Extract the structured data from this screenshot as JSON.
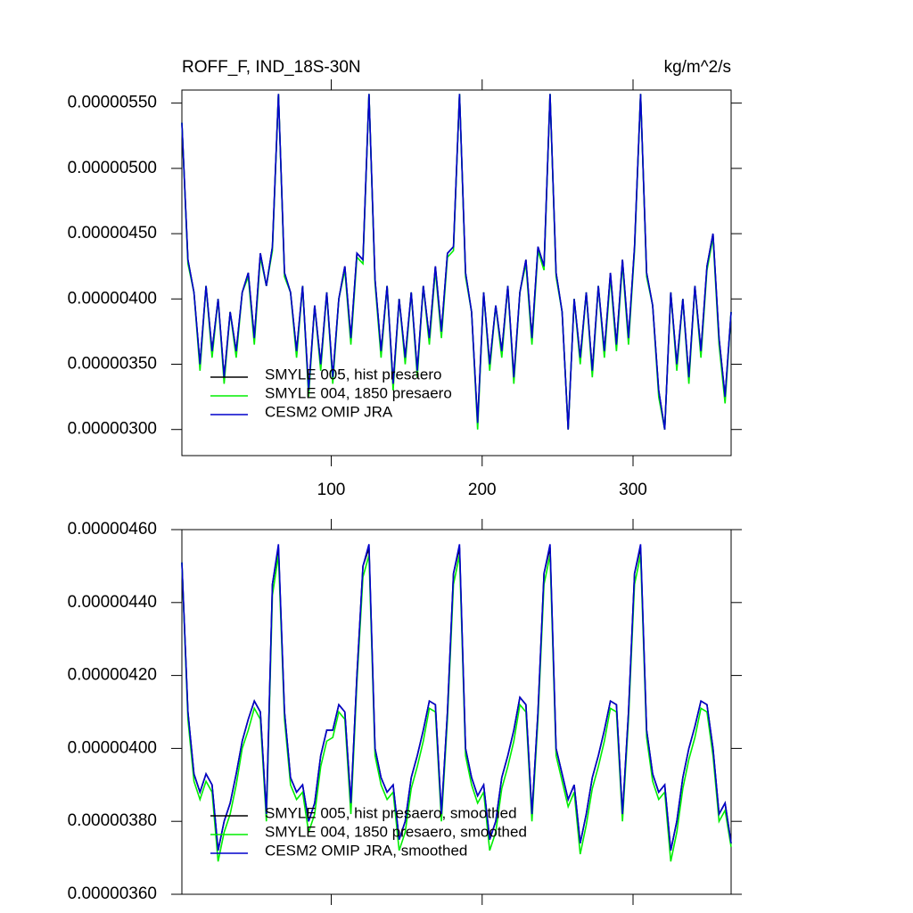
{
  "chart_data": [
    {
      "type": "line",
      "title": "ROFF_F, IND_18S-30N",
      "units_label": "kg/m^2/s",
      "legend": "lower left",
      "grid": false,
      "xlim": [
        1,
        365
      ],
      "xticks": [
        100,
        200,
        300
      ],
      "ylim": [
        2.8e-06,
        5.6e-06
      ],
      "yticks": [
        {
          "value": 3e-06,
          "label": "0.00000300"
        },
        {
          "value": 3.5e-06,
          "label": "0.00000350"
        },
        {
          "value": 4e-06,
          "label": "0.00000400"
        },
        {
          "value": 4.5e-06,
          "label": "0.00000450"
        },
        {
          "value": 5e-06,
          "label": "0.00000500"
        },
        {
          "value": 5.5e-06,
          "label": "0.00000550"
        }
      ],
      "x": [
        1,
        5,
        9,
        13,
        17,
        21,
        25,
        29,
        33,
        37,
        41,
        45,
        49,
        53,
        57,
        61,
        65,
        69,
        73,
        77,
        81,
        85,
        89,
        93,
        97,
        101,
        105,
        109,
        113,
        117,
        121,
        125,
        129,
        133,
        137,
        141,
        145,
        149,
        153,
        157,
        161,
        165,
        169,
        173,
        177,
        181,
        185,
        189,
        193,
        197,
        201,
        205,
        209,
        213,
        217,
        221,
        225,
        229,
        233,
        237,
        241,
        245,
        249,
        253,
        257,
        261,
        265,
        269,
        273,
        277,
        281,
        285,
        289,
        293,
        297,
        301,
        305,
        309,
        313,
        317,
        321,
        325,
        329,
        333,
        337,
        341,
        345,
        349,
        353,
        357,
        361,
        365
      ],
      "series": [
        {
          "name": "SMYLE 005, hist presaero",
          "color": "#000000",
          "values": [
            5.35e-06,
            4.3e-06,
            4.05e-06,
            3.5e-06,
            4.1e-06,
            3.6e-06,
            4e-06,
            3.4e-06,
            3.9e-06,
            3.6e-06,
            4.05e-06,
            4.2e-06,
            3.7e-06,
            4.35e-06,
            4.1e-06,
            4.4e-06,
            5.57e-06,
            4.2e-06,
            4.05e-06,
            3.6e-06,
            4.1e-06,
            3.3e-06,
            3.95e-06,
            3.5e-06,
            4.05e-06,
            3.4e-06,
            4e-06,
            4.25e-06,
            3.7e-06,
            4.35e-06,
            4.3e-06,
            5.57e-06,
            4.15e-06,
            3.6e-06,
            4.1e-06,
            3.35e-06,
            4e-06,
            3.55e-06,
            4.05e-06,
            3.45e-06,
            4.1e-06,
            3.7e-06,
            4.25e-06,
            3.75e-06,
            4.35e-06,
            4.4e-06,
            5.57e-06,
            4.2e-06,
            3.9e-06,
            3.05e-06,
            4.05e-06,
            3.5e-06,
            3.95e-06,
            3.6e-06,
            4.1e-06,
            3.4e-06,
            4.05e-06,
            4.3e-06,
            3.7e-06,
            4.4e-06,
            4.25e-06,
            5.57e-06,
            4.2e-06,
            3.9e-06,
            3e-06,
            4e-06,
            3.55e-06,
            4.05e-06,
            3.45e-06,
            4.1e-06,
            3.6e-06,
            4.2e-06,
            3.65e-06,
            4.3e-06,
            3.7e-06,
            4.4e-06,
            5.57e-06,
            4.2e-06,
            3.95e-06,
            3.3e-06,
            3e-06,
            4.05e-06,
            3.5e-06,
            4e-06,
            3.4e-06,
            4.1e-06,
            3.6e-06,
            4.25e-06,
            4.5e-06,
            3.7e-06,
            3.25e-06,
            3.9e-06
          ]
        },
        {
          "name": "SMYLE 004, 1850 presaero",
          "color": "#00ee00",
          "values": [
            5.35e-06,
            4.27e-06,
            4.05e-06,
            3.45e-06,
            4.1e-06,
            3.55e-06,
            4e-06,
            3.35e-06,
            3.9e-06,
            3.55e-06,
            4.05e-06,
            4.17e-06,
            3.65e-06,
            4.32e-06,
            4.1e-06,
            4.37e-06,
            5.57e-06,
            4.17e-06,
            4.05e-06,
            3.55e-06,
            4.1e-06,
            3.25e-06,
            3.95e-06,
            3.45e-06,
            4.05e-06,
            3.35e-06,
            4e-06,
            4.22e-06,
            3.65e-06,
            4.32e-06,
            4.27e-06,
            5.57e-06,
            4.12e-06,
            3.55e-06,
            4.1e-06,
            3.3e-06,
            4e-06,
            3.5e-06,
            4.05e-06,
            3.4e-06,
            4.1e-06,
            3.65e-06,
            4.22e-06,
            3.7e-06,
            4.32e-06,
            4.37e-06,
            5.57e-06,
            4.17e-06,
            3.9e-06,
            3e-06,
            4.05e-06,
            3.45e-06,
            3.95e-06,
            3.55e-06,
            4.1e-06,
            3.35e-06,
            4.05e-06,
            4.27e-06,
            3.65e-06,
            4.37e-06,
            4.22e-06,
            5.57e-06,
            4.17e-06,
            3.9e-06,
            3e-06,
            4e-06,
            3.5e-06,
            4.05e-06,
            3.4e-06,
            4.1e-06,
            3.55e-06,
            4.17e-06,
            3.6e-06,
            4.27e-06,
            3.65e-06,
            4.37e-06,
            5.57e-06,
            4.17e-06,
            3.95e-06,
            3.25e-06,
            3e-06,
            4.05e-06,
            3.45e-06,
            4e-06,
            3.35e-06,
            4.1e-06,
            3.55e-06,
            4.22e-06,
            4.47e-06,
            3.65e-06,
            3.2e-06,
            3.9e-06
          ]
        },
        {
          "name": "CESM2 OMIP JRA",
          "color": "#0000cc",
          "values": [
            5.35e-06,
            4.3e-06,
            4.05e-06,
            3.5e-06,
            4.1e-06,
            3.6e-06,
            4e-06,
            3.4e-06,
            3.9e-06,
            3.6e-06,
            4.05e-06,
            4.2e-06,
            3.7e-06,
            4.35e-06,
            4.1e-06,
            4.4e-06,
            5.57e-06,
            4.2e-06,
            4.05e-06,
            3.6e-06,
            4.1e-06,
            3.3e-06,
            3.95e-06,
            3.5e-06,
            4.05e-06,
            3.4e-06,
            4e-06,
            4.25e-06,
            3.7e-06,
            4.35e-06,
            4.3e-06,
            5.57e-06,
            4.15e-06,
            3.6e-06,
            4.1e-06,
            3.35e-06,
            4e-06,
            3.55e-06,
            4.05e-06,
            3.45e-06,
            4.1e-06,
            3.7e-06,
            4.25e-06,
            3.75e-06,
            4.35e-06,
            4.4e-06,
            5.57e-06,
            4.2e-06,
            3.9e-06,
            3.05e-06,
            4.05e-06,
            3.5e-06,
            3.95e-06,
            3.6e-06,
            4.1e-06,
            3.4e-06,
            4.05e-06,
            4.3e-06,
            3.7e-06,
            4.4e-06,
            4.25e-06,
            5.57e-06,
            4.2e-06,
            3.9e-06,
            3e-06,
            4e-06,
            3.55e-06,
            4.05e-06,
            3.45e-06,
            4.1e-06,
            3.6e-06,
            4.2e-06,
            3.65e-06,
            4.3e-06,
            3.7e-06,
            4.4e-06,
            5.57e-06,
            4.2e-06,
            3.95e-06,
            3.3e-06,
            3e-06,
            4.05e-06,
            3.5e-06,
            4e-06,
            3.4e-06,
            4.1e-06,
            3.6e-06,
            4.25e-06,
            4.5e-06,
            3.7e-06,
            3.25e-06,
            3.9e-06
          ]
        }
      ]
    },
    {
      "type": "line",
      "legend": "lower left",
      "grid": false,
      "xlim": [
        1,
        365
      ],
      "xticks": [
        100,
        200,
        300
      ],
      "ylim": [
        3.6e-06,
        4.6e-06
      ],
      "yticks": [
        {
          "value": 3.6e-06,
          "label": "0.00000360"
        },
        {
          "value": 3.8e-06,
          "label": "0.00000380"
        },
        {
          "value": 4e-06,
          "label": "0.00000400"
        },
        {
          "value": 4.2e-06,
          "label": "0.00000420"
        },
        {
          "value": 4.4e-06,
          "label": "0.00000440"
        },
        {
          "value": 4.6e-06,
          "label": "0.00000460"
        }
      ],
      "x": [
        1,
        5,
        9,
        13,
        17,
        21,
        25,
        29,
        33,
        37,
        41,
        45,
        49,
        53,
        57,
        61,
        65,
        69,
        73,
        77,
        81,
        85,
        89,
        93,
        97,
        101,
        105,
        109,
        113,
        117,
        121,
        125,
        129,
        133,
        137,
        141,
        145,
        149,
        153,
        157,
        161,
        165,
        169,
        173,
        177,
        181,
        185,
        189,
        193,
        197,
        201,
        205,
        209,
        213,
        217,
        221,
        225,
        229,
        233,
        237,
        241,
        245,
        249,
        253,
        257,
        261,
        265,
        269,
        273,
        277,
        281,
        285,
        289,
        293,
        297,
        301,
        305,
        309,
        313,
        317,
        321,
        325,
        329,
        333,
        337,
        341,
        345,
        349,
        353,
        357,
        361,
        365
      ],
      "series": [
        {
          "name": "SMYLE 005, hist presaero, smoothed",
          "color": "#000000",
          "values": [
            4.51e-06,
            4.1e-06,
            3.93e-06,
            3.88e-06,
            3.93e-06,
            3.9e-06,
            3.72e-06,
            3.8e-06,
            3.85e-06,
            3.93e-06,
            4.02e-06,
            4.08e-06,
            4.13e-06,
            4.1e-06,
            3.82e-06,
            4.45e-06,
            4.55e-06,
            4.1e-06,
            3.92e-06,
            3.88e-06,
            3.9e-06,
            3.8e-06,
            3.85e-06,
            3.98e-06,
            4.05e-06,
            4.05e-06,
            4.12e-06,
            4.1e-06,
            3.85e-06,
            4.2e-06,
            4.5e-06,
            4.55e-06,
            4e-06,
            3.92e-06,
            3.88e-06,
            3.9e-06,
            3.75e-06,
            3.8e-06,
            3.92e-06,
            3.98e-06,
            4.05e-06,
            4.13e-06,
            4.12e-06,
            3.82e-06,
            4.1e-06,
            4.48e-06,
            4.55e-06,
            4e-06,
            3.92e-06,
            3.87e-06,
            3.9e-06,
            3.75e-06,
            3.8e-06,
            3.92e-06,
            3.98e-06,
            4.05e-06,
            4.14e-06,
            4.12e-06,
            3.82e-06,
            4.1e-06,
            4.48e-06,
            4.55e-06,
            4e-06,
            3.93e-06,
            3.86e-06,
            3.9e-06,
            3.74e-06,
            3.82e-06,
            3.92e-06,
            3.98e-06,
            4.05e-06,
            4.13e-06,
            4.12e-06,
            3.82e-06,
            4.1e-06,
            4.48e-06,
            4.55e-06,
            4.05e-06,
            3.93e-06,
            3.88e-06,
            3.9e-06,
            3.72e-06,
            3.8e-06,
            3.92e-06,
            4e-06,
            4.06e-06,
            4.13e-06,
            4.12e-06,
            4e-06,
            3.82e-06,
            3.85e-06,
            3.74e-06
          ]
        },
        {
          "name": "SMYLE 004, 1850 presaero, smoothed",
          "color": "#00ee00",
          "values": [
            4.51e-06,
            4.08e-06,
            3.91e-06,
            3.86e-06,
            3.91e-06,
            3.88e-06,
            3.69e-06,
            3.77e-06,
            3.82e-06,
            3.9e-06,
            4e-06,
            4.05e-06,
            4.11e-06,
            4.08e-06,
            3.8e-06,
            4.42e-06,
            4.53e-06,
            4.08e-06,
            3.9e-06,
            3.86e-06,
            3.88e-06,
            3.77e-06,
            3.82e-06,
            3.95e-06,
            4.02e-06,
            4.03e-06,
            4.1e-06,
            4.08e-06,
            3.82e-06,
            4.18e-06,
            4.47e-06,
            4.53e-06,
            3.98e-06,
            3.9e-06,
            3.86e-06,
            3.88e-06,
            3.72e-06,
            3.77e-06,
            3.89e-06,
            3.95e-06,
            4.02e-06,
            4.11e-06,
            4.1e-06,
            3.8e-06,
            4.08e-06,
            4.45e-06,
            4.53e-06,
            3.98e-06,
            3.9e-06,
            3.85e-06,
            3.88e-06,
            3.72e-06,
            3.77e-06,
            3.89e-06,
            3.95e-06,
            4.02e-06,
            4.12e-06,
            4.1e-06,
            3.8e-06,
            4.08e-06,
            4.45e-06,
            4.53e-06,
            3.98e-06,
            3.91e-06,
            3.84e-06,
            3.88e-06,
            3.71e-06,
            3.79e-06,
            3.89e-06,
            3.95e-06,
            4.02e-06,
            4.11e-06,
            4.1e-06,
            3.8e-06,
            4.08e-06,
            4.45e-06,
            4.53e-06,
            4.03e-06,
            3.91e-06,
            3.86e-06,
            3.88e-06,
            3.69e-06,
            3.77e-06,
            3.89e-06,
            3.97e-06,
            4.03e-06,
            4.11e-06,
            4.1e-06,
            3.98e-06,
            3.8e-06,
            3.83e-06,
            3.73e-06
          ]
        },
        {
          "name": "CESM2 OMIP JRA, smoothed",
          "color": "#0000cc",
          "values": [
            4.51e-06,
            4.1e-06,
            3.93e-06,
            3.88e-06,
            3.93e-06,
            3.9e-06,
            3.72e-06,
            3.8e-06,
            3.85e-06,
            3.93e-06,
            4.02e-06,
            4.08e-06,
            4.13e-06,
            4.1e-06,
            3.82e-06,
            4.45e-06,
            4.56e-06,
            4.1e-06,
            3.92e-06,
            3.88e-06,
            3.9e-06,
            3.8e-06,
            3.85e-06,
            3.98e-06,
            4.05e-06,
            4.05e-06,
            4.12e-06,
            4.1e-06,
            3.85e-06,
            4.2e-06,
            4.5e-06,
            4.56e-06,
            4e-06,
            3.92e-06,
            3.88e-06,
            3.9e-06,
            3.75e-06,
            3.8e-06,
            3.92e-06,
            3.98e-06,
            4.05e-06,
            4.13e-06,
            4.12e-06,
            3.82e-06,
            4.1e-06,
            4.48e-06,
            4.56e-06,
            4e-06,
            3.92e-06,
            3.87e-06,
            3.9e-06,
            3.75e-06,
            3.8e-06,
            3.92e-06,
            3.98e-06,
            4.05e-06,
            4.14e-06,
            4.12e-06,
            3.82e-06,
            4.1e-06,
            4.48e-06,
            4.56e-06,
            4e-06,
            3.93e-06,
            3.86e-06,
            3.9e-06,
            3.74e-06,
            3.82e-06,
            3.92e-06,
            3.98e-06,
            4.05e-06,
            4.13e-06,
            4.12e-06,
            3.82e-06,
            4.1e-06,
            4.48e-06,
            4.56e-06,
            4.05e-06,
            3.93e-06,
            3.88e-06,
            3.9e-06,
            3.72e-06,
            3.8e-06,
            3.92e-06,
            4e-06,
            4.06e-06,
            4.13e-06,
            4.12e-06,
            4e-06,
            3.82e-06,
            3.85e-06,
            3.74e-06
          ]
        }
      ]
    }
  ]
}
